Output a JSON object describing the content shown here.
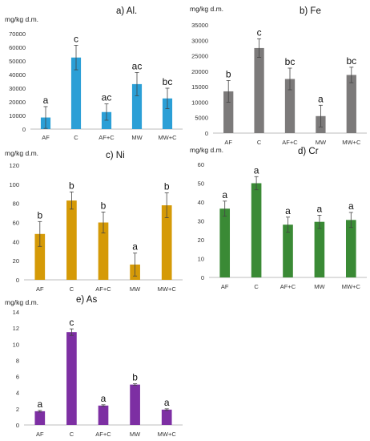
{
  "chart_data": [
    {
      "type": "bar",
      "title": "a) Al.",
      "ylabel": "mg/kg d.m.",
      "categories": [
        "AF",
        "C",
        "AF+C",
        "MW",
        "MW+C"
      ],
      "values": [
        8500,
        52500,
        12500,
        33000,
        22500
      ],
      "errors": [
        8000,
        9000,
        6000,
        8500,
        7500
      ],
      "letters": [
        "a",
        "c",
        "ac",
        "ac",
        "bc"
      ],
      "ylim": [
        0,
        70000
      ],
      "yticks": [
        0,
        10000,
        20000,
        30000,
        40000,
        50000,
        60000,
        70000
      ],
      "color": "#2b9fd6"
    },
    {
      "type": "bar",
      "title": "b) Fe",
      "ylabel": "mg/kg d.m.",
      "categories": [
        "AF",
        "C",
        "AF+C",
        "MW",
        "MW+C"
      ],
      "values": [
        13500,
        27500,
        17500,
        5500,
        18800
      ],
      "errors": [
        3500,
        3000,
        3500,
        3500,
        2500
      ],
      "letters": [
        "b",
        "c",
        "bc",
        "a",
        "bc"
      ],
      "ylim": [
        0,
        35000
      ],
      "yticks": [
        0,
        5000,
        10000,
        15000,
        20000,
        25000,
        30000,
        35000
      ],
      "color": "#7c7a7a"
    },
    {
      "type": "bar",
      "title": "c) Ni",
      "ylabel": "mg/kg d.m.",
      "categories": [
        "AF",
        "C",
        "AF+C",
        "MW",
        "MW+C"
      ],
      "values": [
        48,
        83,
        60,
        16,
        78
      ],
      "errors": [
        13,
        9,
        11,
        12,
        13
      ],
      "letters": [
        "b",
        "b",
        "b",
        "a",
        "b"
      ],
      "ylim": [
        0,
        120
      ],
      "yticks": [
        0,
        20,
        40,
        60,
        80,
        100,
        120
      ],
      "color": "#d59a07"
    },
    {
      "type": "bar",
      "title": "d) Cr",
      "ylabel": "mg/kg d.m.",
      "categories": [
        "AF",
        "C",
        "AF+C",
        "MW",
        "MW+C"
      ],
      "values": [
        36.5,
        50,
        28,
        29.5,
        30.5
      ],
      "errors": [
        4,
        3.5,
        4,
        3.5,
        4
      ],
      "letters": [
        "a",
        "a",
        "a",
        "a",
        "a"
      ],
      "ylim": [
        0,
        60
      ],
      "yticks": [
        0,
        10,
        20,
        30,
        40,
        50,
        60
      ],
      "color": "#3a8a35"
    },
    {
      "type": "bar",
      "title": "e) As",
      "ylabel": "mg/kg d.m.",
      "categories": [
        "AF",
        "C",
        "AF+C",
        "MW",
        "MW+C"
      ],
      "values": [
        1.7,
        11.5,
        2.4,
        5.0,
        1.9
      ],
      "errors": [
        0.1,
        0.4,
        0.1,
        0.1,
        0.1
      ],
      "letters": [
        "a",
        "c",
        "a",
        "b",
        "a"
      ],
      "ylim": [
        0,
        14
      ],
      "yticks": [
        0,
        2,
        4,
        6,
        8,
        10,
        12,
        14
      ],
      "color": "#7d2fa3"
    }
  ]
}
